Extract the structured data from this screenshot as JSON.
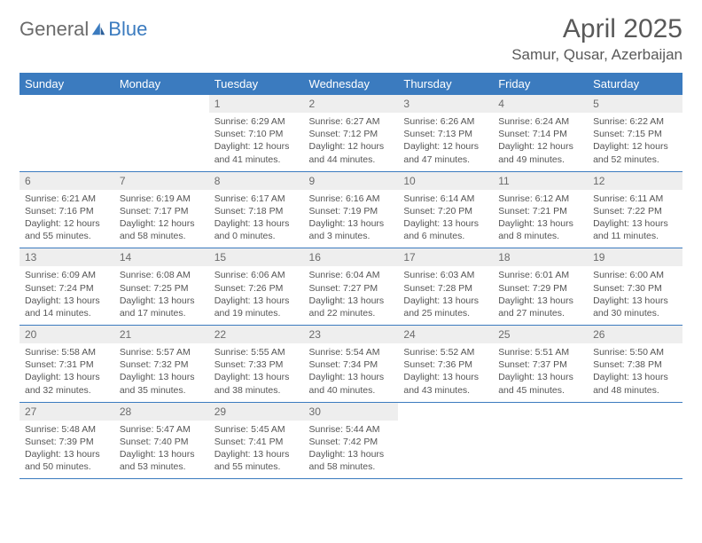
{
  "brand": {
    "part1": "General",
    "part2": "Blue"
  },
  "title": "April 2025",
  "location": "Samur, Qusar, Azerbaijan",
  "colors": {
    "header_bg": "#3b7bbf",
    "header_text": "#ffffff",
    "daynum_bg": "#eeeeee",
    "text": "#555555",
    "row_border": "#3b7bbf"
  },
  "weekdays": [
    "Sunday",
    "Monday",
    "Tuesday",
    "Wednesday",
    "Thursday",
    "Friday",
    "Saturday"
  ],
  "weeks": [
    [
      {
        "n": "",
        "sr": "",
        "ss": "",
        "dl": "",
        "empty": true
      },
      {
        "n": "",
        "sr": "",
        "ss": "",
        "dl": "",
        "empty": true
      },
      {
        "n": "1",
        "sr": "Sunrise: 6:29 AM",
        "ss": "Sunset: 7:10 PM",
        "dl": "Daylight: 12 hours and 41 minutes."
      },
      {
        "n": "2",
        "sr": "Sunrise: 6:27 AM",
        "ss": "Sunset: 7:12 PM",
        "dl": "Daylight: 12 hours and 44 minutes."
      },
      {
        "n": "3",
        "sr": "Sunrise: 6:26 AM",
        "ss": "Sunset: 7:13 PM",
        "dl": "Daylight: 12 hours and 47 minutes."
      },
      {
        "n": "4",
        "sr": "Sunrise: 6:24 AM",
        "ss": "Sunset: 7:14 PM",
        "dl": "Daylight: 12 hours and 49 minutes."
      },
      {
        "n": "5",
        "sr": "Sunrise: 6:22 AM",
        "ss": "Sunset: 7:15 PM",
        "dl": "Daylight: 12 hours and 52 minutes."
      }
    ],
    [
      {
        "n": "6",
        "sr": "Sunrise: 6:21 AM",
        "ss": "Sunset: 7:16 PM",
        "dl": "Daylight: 12 hours and 55 minutes."
      },
      {
        "n": "7",
        "sr": "Sunrise: 6:19 AM",
        "ss": "Sunset: 7:17 PM",
        "dl": "Daylight: 12 hours and 58 minutes."
      },
      {
        "n": "8",
        "sr": "Sunrise: 6:17 AM",
        "ss": "Sunset: 7:18 PM",
        "dl": "Daylight: 13 hours and 0 minutes."
      },
      {
        "n": "9",
        "sr": "Sunrise: 6:16 AM",
        "ss": "Sunset: 7:19 PM",
        "dl": "Daylight: 13 hours and 3 minutes."
      },
      {
        "n": "10",
        "sr": "Sunrise: 6:14 AM",
        "ss": "Sunset: 7:20 PM",
        "dl": "Daylight: 13 hours and 6 minutes."
      },
      {
        "n": "11",
        "sr": "Sunrise: 6:12 AM",
        "ss": "Sunset: 7:21 PM",
        "dl": "Daylight: 13 hours and 8 minutes."
      },
      {
        "n": "12",
        "sr": "Sunrise: 6:11 AM",
        "ss": "Sunset: 7:22 PM",
        "dl": "Daylight: 13 hours and 11 minutes."
      }
    ],
    [
      {
        "n": "13",
        "sr": "Sunrise: 6:09 AM",
        "ss": "Sunset: 7:24 PM",
        "dl": "Daylight: 13 hours and 14 minutes."
      },
      {
        "n": "14",
        "sr": "Sunrise: 6:08 AM",
        "ss": "Sunset: 7:25 PM",
        "dl": "Daylight: 13 hours and 17 minutes."
      },
      {
        "n": "15",
        "sr": "Sunrise: 6:06 AM",
        "ss": "Sunset: 7:26 PM",
        "dl": "Daylight: 13 hours and 19 minutes."
      },
      {
        "n": "16",
        "sr": "Sunrise: 6:04 AM",
        "ss": "Sunset: 7:27 PM",
        "dl": "Daylight: 13 hours and 22 minutes."
      },
      {
        "n": "17",
        "sr": "Sunrise: 6:03 AM",
        "ss": "Sunset: 7:28 PM",
        "dl": "Daylight: 13 hours and 25 minutes."
      },
      {
        "n": "18",
        "sr": "Sunrise: 6:01 AM",
        "ss": "Sunset: 7:29 PM",
        "dl": "Daylight: 13 hours and 27 minutes."
      },
      {
        "n": "19",
        "sr": "Sunrise: 6:00 AM",
        "ss": "Sunset: 7:30 PM",
        "dl": "Daylight: 13 hours and 30 minutes."
      }
    ],
    [
      {
        "n": "20",
        "sr": "Sunrise: 5:58 AM",
        "ss": "Sunset: 7:31 PM",
        "dl": "Daylight: 13 hours and 32 minutes."
      },
      {
        "n": "21",
        "sr": "Sunrise: 5:57 AM",
        "ss": "Sunset: 7:32 PM",
        "dl": "Daylight: 13 hours and 35 minutes."
      },
      {
        "n": "22",
        "sr": "Sunrise: 5:55 AM",
        "ss": "Sunset: 7:33 PM",
        "dl": "Daylight: 13 hours and 38 minutes."
      },
      {
        "n": "23",
        "sr": "Sunrise: 5:54 AM",
        "ss": "Sunset: 7:34 PM",
        "dl": "Daylight: 13 hours and 40 minutes."
      },
      {
        "n": "24",
        "sr": "Sunrise: 5:52 AM",
        "ss": "Sunset: 7:36 PM",
        "dl": "Daylight: 13 hours and 43 minutes."
      },
      {
        "n": "25",
        "sr": "Sunrise: 5:51 AM",
        "ss": "Sunset: 7:37 PM",
        "dl": "Daylight: 13 hours and 45 minutes."
      },
      {
        "n": "26",
        "sr": "Sunrise: 5:50 AM",
        "ss": "Sunset: 7:38 PM",
        "dl": "Daylight: 13 hours and 48 minutes."
      }
    ],
    [
      {
        "n": "27",
        "sr": "Sunrise: 5:48 AM",
        "ss": "Sunset: 7:39 PM",
        "dl": "Daylight: 13 hours and 50 minutes."
      },
      {
        "n": "28",
        "sr": "Sunrise: 5:47 AM",
        "ss": "Sunset: 7:40 PM",
        "dl": "Daylight: 13 hours and 53 minutes."
      },
      {
        "n": "29",
        "sr": "Sunrise: 5:45 AM",
        "ss": "Sunset: 7:41 PM",
        "dl": "Daylight: 13 hours and 55 minutes."
      },
      {
        "n": "30",
        "sr": "Sunrise: 5:44 AM",
        "ss": "Sunset: 7:42 PM",
        "dl": "Daylight: 13 hours and 58 minutes."
      },
      {
        "n": "",
        "sr": "",
        "ss": "",
        "dl": "",
        "empty": true
      },
      {
        "n": "",
        "sr": "",
        "ss": "",
        "dl": "",
        "empty": true
      },
      {
        "n": "",
        "sr": "",
        "ss": "",
        "dl": "",
        "empty": true
      }
    ]
  ]
}
